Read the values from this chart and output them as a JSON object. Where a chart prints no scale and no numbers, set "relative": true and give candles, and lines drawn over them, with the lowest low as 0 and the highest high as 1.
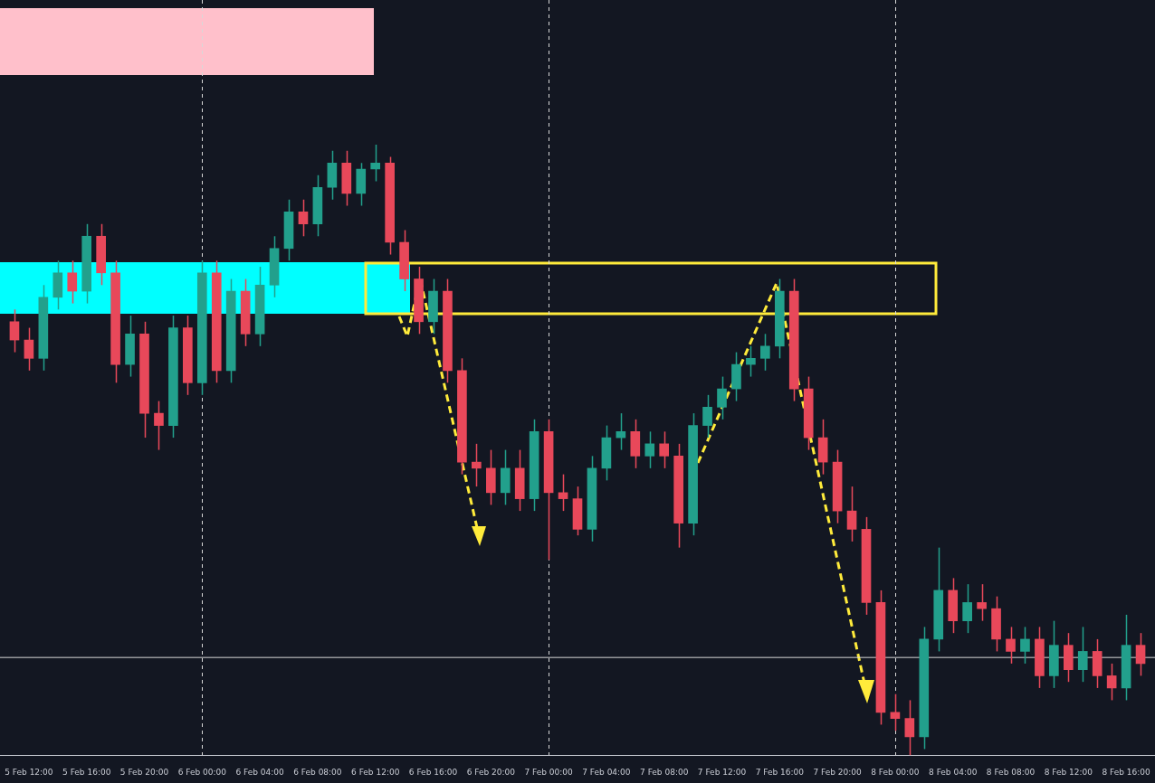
{
  "chart_data": {
    "type": "candlestick",
    "relative": true,
    "x": [
      "--02-05T11:00",
      "--02-05T12:00",
      "--02-05T13:00",
      "--02-05T14:00",
      "--02-05T15:00",
      "--02-05T16:00",
      "--02-05T17:00",
      "--02-05T18:00",
      "--02-05T19:00",
      "--02-05T20:00",
      "--02-05T21:00",
      "--02-05T22:00",
      "--02-05T23:00",
      "--02-06T00:00",
      "--02-06T01:00",
      "--02-06T02:00",
      "--02-06T03:00",
      "--02-06T04:00",
      "--02-06T05:00",
      "--02-06T06:00",
      "--02-06T07:00",
      "--02-06T08:00",
      "--02-06T09:00",
      "--02-06T10:00",
      "--02-06T11:00",
      "--02-06T12:00",
      "--02-06T13:00",
      "--02-06T14:00",
      "--02-06T15:00",
      "--02-06T16:00",
      "--02-06T17:00",
      "--02-06T18:00",
      "--02-06T19:00",
      "--02-06T20:00",
      "--02-06T21:00",
      "--02-06T22:00",
      "--02-06T23:00",
      "--02-07T00:00",
      "--02-07T01:00",
      "--02-07T02:00",
      "--02-07T03:00",
      "--02-07T04:00",
      "--02-07T05:00",
      "--02-07T06:00",
      "--02-07T07:00",
      "--02-07T08:00",
      "--02-07T09:00",
      "--02-07T10:00",
      "--02-07T11:00",
      "--02-07T12:00",
      "--02-07T13:00",
      "--02-07T14:00",
      "--02-07T15:00",
      "--02-07T16:00",
      "--02-07T17:00",
      "--02-07T18:00",
      "--02-07T19:00",
      "--02-07T20:00",
      "--02-07T21:00",
      "--02-07T22:00",
      "--02-07T23:00",
      "--02-08T00:00",
      "--02-08T01:00",
      "--02-08T02:00",
      "--02-08T03:00",
      "--02-08T04:00",
      "--02-08T05:00",
      "--02-08T06:00",
      "--02-08T07:00",
      "--02-08T08:00",
      "--02-08T09:00",
      "--02-08T10:00",
      "--02-08T11:00",
      "--02-08T12:00",
      "--02-08T13:00",
      "--02-08T14:00",
      "--02-08T15:00",
      "--02-08T16:00",
      "--02-08T17:00"
    ],
    "ohlc": [
      [
        0.71,
        0.73,
        0.66,
        0.68
      ],
      [
        0.68,
        0.7,
        0.63,
        0.65
      ],
      [
        0.65,
        0.77,
        0.63,
        0.75
      ],
      [
        0.75,
        0.81,
        0.73,
        0.79
      ],
      [
        0.79,
        0.81,
        0.74,
        0.76
      ],
      [
        0.76,
        0.87,
        0.74,
        0.85
      ],
      [
        0.85,
        0.87,
        0.77,
        0.79
      ],
      [
        0.79,
        0.81,
        0.61,
        0.64
      ],
      [
        0.64,
        0.72,
        0.62,
        0.69
      ],
      [
        0.69,
        0.71,
        0.52,
        0.56
      ],
      [
        0.56,
        0.58,
        0.5,
        0.54
      ],
      [
        0.54,
        0.72,
        0.52,
        0.7
      ],
      [
        0.7,
        0.72,
        0.59,
        0.61
      ],
      [
        0.61,
        0.81,
        0.59,
        0.79
      ],
      [
        0.79,
        0.81,
        0.61,
        0.63
      ],
      [
        0.63,
        0.78,
        0.61,
        0.76
      ],
      [
        0.76,
        0.78,
        0.67,
        0.69
      ],
      [
        0.69,
        0.8,
        0.67,
        0.77
      ],
      [
        0.77,
        0.85,
        0.75,
        0.83
      ],
      [
        0.83,
        0.91,
        0.81,
        0.89
      ],
      [
        0.89,
        0.91,
        0.85,
        0.87
      ],
      [
        0.87,
        0.95,
        0.85,
        0.93
      ],
      [
        0.93,
        0.99,
        0.91,
        0.97
      ],
      [
        0.97,
        0.99,
        0.9,
        0.92
      ],
      [
        0.92,
        0.97,
        0.9,
        0.96
      ],
      [
        0.96,
        1.0,
        0.94,
        0.97
      ],
      [
        0.97,
        0.98,
        0.82,
        0.84
      ],
      [
        0.84,
        0.86,
        0.76,
        0.78
      ],
      [
        0.78,
        0.8,
        0.69,
        0.71
      ],
      [
        0.71,
        0.78,
        0.69,
        0.76
      ],
      [
        0.76,
        0.78,
        0.61,
        0.63
      ],
      [
        0.63,
        0.65,
        0.46,
        0.48
      ],
      [
        0.48,
        0.51,
        0.44,
        0.47
      ],
      [
        0.47,
        0.5,
        0.41,
        0.43
      ],
      [
        0.43,
        0.5,
        0.41,
        0.47
      ],
      [
        0.47,
        0.5,
        0.4,
        0.42
      ],
      [
        0.42,
        0.55,
        0.4,
        0.53
      ],
      [
        0.53,
        0.55,
        0.32,
        0.43
      ],
      [
        0.43,
        0.46,
        0.4,
        0.42
      ],
      [
        0.42,
        0.44,
        0.36,
        0.37
      ],
      [
        0.37,
        0.49,
        0.35,
        0.47
      ],
      [
        0.47,
        0.54,
        0.45,
        0.52
      ],
      [
        0.52,
        0.56,
        0.5,
        0.53
      ],
      [
        0.53,
        0.55,
        0.47,
        0.49
      ],
      [
        0.49,
        0.53,
        0.47,
        0.51
      ],
      [
        0.51,
        0.53,
        0.47,
        0.49
      ],
      [
        0.49,
        0.51,
        0.34,
        0.38
      ],
      [
        0.38,
        0.56,
        0.36,
        0.54
      ],
      [
        0.54,
        0.59,
        0.52,
        0.57
      ],
      [
        0.57,
        0.62,
        0.55,
        0.6
      ],
      [
        0.6,
        0.66,
        0.58,
        0.64
      ],
      [
        0.64,
        0.67,
        0.62,
        0.65
      ],
      [
        0.65,
        0.69,
        0.63,
        0.67
      ],
      [
        0.67,
        0.78,
        0.65,
        0.76
      ],
      [
        0.76,
        0.78,
        0.58,
        0.6
      ],
      [
        0.6,
        0.62,
        0.5,
        0.52
      ],
      [
        0.52,
        0.55,
        0.46,
        0.48
      ],
      [
        0.48,
        0.5,
        0.38,
        0.4
      ],
      [
        0.4,
        0.44,
        0.35,
        0.37
      ],
      [
        0.37,
        0.39,
        0.23,
        0.25
      ],
      [
        0.25,
        0.27,
        0.05,
        0.07
      ],
      [
        0.07,
        0.1,
        0.04,
        0.06
      ],
      [
        0.06,
        0.09,
        0,
        0.03
      ],
      [
        0.03,
        0.21,
        0.01,
        0.19
      ],
      [
        0.19,
        0.34,
        0.17,
        0.27
      ],
      [
        0.27,
        0.29,
        0.2,
        0.22
      ],
      [
        0.22,
        0.28,
        0.2,
        0.25
      ],
      [
        0.25,
        0.28,
        0.22,
        0.24
      ],
      [
        0.24,
        0.26,
        0.17,
        0.19
      ],
      [
        0.19,
        0.21,
        0.15,
        0.17
      ],
      [
        0.17,
        0.21,
        0.15,
        0.19
      ],
      [
        0.19,
        0.21,
        0.11,
        0.13
      ],
      [
        0.13,
        0.22,
        0.11,
        0.18
      ],
      [
        0.18,
        0.2,
        0.12,
        0.14
      ],
      [
        0.14,
        0.21,
        0.12,
        0.17
      ],
      [
        0.17,
        0.19,
        0.11,
        0.13
      ],
      [
        0.13,
        0.15,
        0.09,
        0.11
      ],
      [
        0.11,
        0.23,
        0.09,
        0.18
      ],
      [
        0.18,
        0.2,
        0.13,
        0.15
      ]
    ],
    "colors": [
      "#e8485a",
      "#e8485a",
      "#22a08c",
      "#22a08c",
      "#e8485a",
      "#22a08c",
      "#e8485a",
      "#e8485a",
      "#22a08c",
      "#e8485a",
      "#e8485a",
      "#22a08c",
      "#e8485a",
      "#22a08c",
      "#e8485a",
      "#22a08c",
      "#e8485a",
      "#22a08c",
      "#22a08c",
      "#22a08c",
      "#e8485a",
      "#22a08c",
      "#22a08c",
      "#e8485a",
      "#22a08c",
      "#22a08c",
      "#e8485a",
      "#e8485a",
      "#e8485a",
      "#22a08c",
      "#e8485a",
      "#e8485a",
      "#e8485a",
      "#e8485a",
      "#22a08c",
      "#e8485a",
      "#22a08c",
      "#e8485a",
      "#e8485a",
      "#e8485a",
      "#22a08c",
      "#22a08c",
      "#22a08c",
      "#e8485a",
      "#22a08c",
      "#e8485a",
      "#e8485a",
      "#22a08c",
      "#22a08c",
      "#22a08c",
      "#22a08c",
      "#22a08c",
      "#22a08c",
      "#22a08c",
      "#e8485a",
      "#e8485a",
      "#e8485a",
      "#e8485a",
      "#e8485a",
      "#e8485a",
      "#e8485a",
      "#e8485a",
      "#e8485a",
      "#22a08c",
      "#22a08c",
      "#e8485a",
      "#22a08c",
      "#e8485a",
      "#e8485a",
      "#e8485a",
      "#22a08c",
      "#e8485a",
      "#22a08c",
      "#e8485a",
      "#22a08c",
      "#e8485a",
      "#e8485a",
      "#22a08c",
      "#e8485a"
    ],
    "xlim": [
      "--02-05T10:00",
      "--02-08T18:00"
    ],
    "xticks": [
      {
        "value": "--02-05T12:00",
        "label": "5 Feb 12:00"
      },
      {
        "value": "--02-05T16:00",
        "label": "5 Feb 16:00"
      },
      {
        "value": "--02-05T20:00",
        "label": "5 Feb 20:00"
      },
      {
        "value": "--02-06T00:00",
        "label": "6 Feb 00:00"
      },
      {
        "value": "--02-06T04:00",
        "label": "6 Feb 04:00"
      },
      {
        "value": "--02-06T08:00",
        "label": "6 Feb 08:00"
      },
      {
        "value": "--02-06T12:00",
        "label": "6 Feb 12:00"
      },
      {
        "value": "--02-06T16:00",
        "label": "6 Feb 16:00"
      },
      {
        "value": "--02-06T20:00",
        "label": "6 Feb 20:00"
      },
      {
        "value": "--02-07T00:00",
        "label": "7 Feb 00:00"
      },
      {
        "value": "--02-07T04:00",
        "label": "7 Feb 04:00"
      },
      {
        "value": "--02-07T08:00",
        "label": "7 Feb 08:00"
      },
      {
        "value": "--02-07T12:00",
        "label": "7 Feb 12:00"
      },
      {
        "value": "--02-07T16:00",
        "label": "7 Feb 16:00"
      },
      {
        "value": "--02-07T20:00",
        "label": "7 Feb 20:00"
      },
      {
        "value": "--02-08T00:00",
        "label": "8 Feb 00:00"
      },
      {
        "value": "--02-08T04:00",
        "label": "8 Feb 04:00"
      },
      {
        "value": "--02-08T08:00",
        "label": "8 Feb 08:00"
      },
      {
        "value": "--02-08T12:00",
        "label": "8 Feb 12:00"
      },
      {
        "value": "--02-08T16:00",
        "label": "8 Feb 16:00"
      }
    ],
    "ref_lines": [
      {
        "axis": "x",
        "value": "--02-06T00:00",
        "color": "#d8d8d8",
        "line_style": "dashed"
      },
      {
        "axis": "x",
        "value": "--02-07T00:00",
        "color": "#d8d8d8",
        "line_style": "dashed"
      },
      {
        "axis": "x",
        "value": "--02-08T00:00",
        "color": "#d8d8d8",
        "line_style": "dashed"
      },
      {
        "axis": "y",
        "value": 0.16,
        "color": "#d8d8d8",
        "line_style": "solid"
      }
    ]
  }
}
